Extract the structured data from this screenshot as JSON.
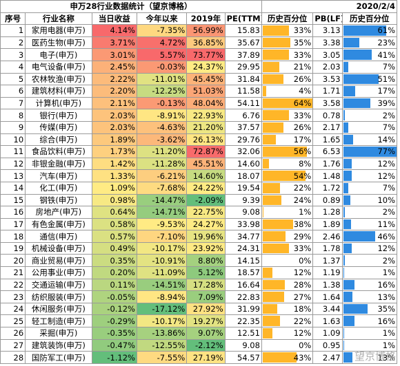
{
  "header": {
    "title": "申万28行业数据统计（望京博格）",
    "date": "2020/2/4"
  },
  "table": {
    "columns": [
      "序号",
      "行业名称",
      "当日收益",
      "今年以来",
      "2019年",
      "PE(TTM)",
      "历史百分位",
      "PB(LF)",
      "历史百分位"
    ],
    "rows": [
      [
        "1",
        "家用电器(申万)",
        "4.14%",
        "-7.35%",
        "56.99%",
        "15.83",
        "33%",
        "3.13",
        "61%"
      ],
      [
        "2",
        "医药生物(申万)",
        "3.71%",
        "4.72%",
        "36.85%",
        "35.67",
        "35%",
        "3.38",
        "23%"
      ],
      [
        "3",
        "电子(申万)",
        "3.01%",
        "5.57%",
        "73.77%",
        "37.89",
        "33%",
        "3.05",
        "41%"
      ],
      [
        "4",
        "电气设备(申万)",
        "2.45%",
        "-0.03%",
        "24.37%",
        "29.95",
        "21%",
        "2.03",
        "7%"
      ],
      [
        "5",
        "农林牧渔(申万)",
        "2.22%",
        "-11.01%",
        "45.45%",
        "31.84",
        "26%",
        "3.53",
        "51%"
      ],
      [
        "6",
        "建筑材料(申万)",
        "2.20%",
        "-12.25%",
        "51.03%",
        "11.58",
        "4%",
        "1.71",
        "17%"
      ],
      [
        "7",
        "计算机(申万)",
        "2.11%",
        "-0.13%",
        "48.04%",
        "54.11",
        "64%",
        "3.58",
        "39%"
      ],
      [
        "8",
        "银行(申万)",
        "2.03%",
        "-8.91%",
        "22.93%",
        "6.76",
        "33%",
        "0.78",
        "2%"
      ],
      [
        "9",
        "传媒(申万)",
        "2.03%",
        "-4.63%",
        "21.20%",
        "37.57",
        "26%",
        "2.17",
        "7%"
      ],
      [
        "10",
        "综合(申万)",
        "1.89%",
        "-3.62%",
        "26.13%",
        "29.76",
        "17%",
        "1.65",
        "14%"
      ],
      [
        "11",
        "食品饮料(申万)",
        "1.73%",
        "-11.20%",
        "72.87%",
        "32.06",
        "56%",
        "6.53",
        "77%"
      ],
      [
        "12",
        "非银金融(申万)",
        "1.42%",
        "-11.28%",
        "45.51%",
        "14.60",
        "8%",
        "1.76",
        "12%"
      ],
      [
        "13",
        "汽车(申万)",
        "1.33%",
        "-6.21%",
        "14.60%",
        "18.07",
        "54%",
        "1.48",
        "12%"
      ],
      [
        "14",
        "化工(申万)",
        "1.09%",
        "-7.68%",
        "24.22%",
        "19.54",
        "22%",
        "1.72",
        "7%"
      ],
      [
        "15",
        "钢铁(申万)",
        "0.98%",
        "-14.47%",
        "-2.09%",
        "9.39",
        "24%",
        "0.89",
        "10%"
      ],
      [
        "16",
        "房地产(申万)",
        "0.64%",
        "-14.71%",
        "22.75%",
        "9.08",
        "1%",
        "1.28",
        "2%"
      ],
      [
        "17",
        "有色金属(申万)",
        "0.58%",
        "-9.53%",
        "24.27%",
        "33.98",
        "38%",
        "1.89",
        "11%"
      ],
      [
        "18",
        "通信(申万)",
        "0.57%",
        "-7.10%",
        "19.96%",
        "34.77",
        "29%",
        "2.46",
        "46%"
      ],
      [
        "19",
        "机械设备(申万)",
        "0.49%",
        "-10.17%",
        "23.92%",
        "24.31",
        "33%",
        "1.78",
        "12%"
      ],
      [
        "20",
        "商业贸易(申万)",
        "0.35%",
        "-10.91%",
        "8.80%",
        "14.15",
        "0%",
        "1.37",
        "2%"
      ],
      [
        "21",
        "公用事业(申万)",
        "0.20%",
        "-11.09%",
        "5.12%",
        "18.57",
        "12%",
        "1.19",
        "1%"
      ],
      [
        "22",
        "交通运输(申万)",
        "0.11%",
        "-14.51%",
        "17.28%",
        "16.64",
        "28%",
        "1.38",
        "16%"
      ],
      [
        "23",
        "纺织服装(申万)",
        "-0.05%",
        "-8.94%",
        "7.09%",
        "22.83",
        "27%",
        "1.64",
        "13%"
      ],
      [
        "24",
        "休闲服务(申万)",
        "-0.12%",
        "-17.12%",
        "27.92%",
        "31.99",
        "18%",
        "3.44",
        "35%"
      ],
      [
        "25",
        "轻工制造(申万)",
        "-0.29%",
        "-10.17%",
        "19.27%",
        "22.35",
        "22%",
        "1.63",
        "16%"
      ],
      [
        "26",
        "采掘(申万)",
        "-0.35%",
        "-13.86%",
        "9.07%",
        "12.51",
        "12%",
        "1.09",
        "1%"
      ],
      [
        "27",
        "建筑装饰(申万)",
        "-0.47%",
        "-12.55%",
        "-2.12%",
        "9.08",
        "0%",
        "0.95",
        "1%"
      ],
      [
        "28",
        "国防军工(申万)",
        "-1.12%",
        "-7.55%",
        "27.19%",
        "54.57",
        "43%",
        "2.47",
        "13%"
      ]
    ]
  },
  "watermark": "望京博格",
  "colors": {
    "high": "#f8696b",
    "mid": "#ffeb84",
    "low": "#63be7b",
    "pe_bar": "#ffb628",
    "pb_bar": "#2f8ae0"
  }
}
